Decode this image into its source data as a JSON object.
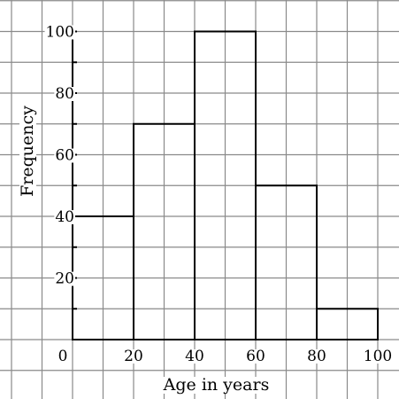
{
  "chart_data": {
    "type": "bar",
    "bins": [
      {
        "from": 0,
        "to": 20,
        "value": 40
      },
      {
        "from": 20,
        "to": 40,
        "value": 70
      },
      {
        "from": 40,
        "to": 60,
        "value": 100
      },
      {
        "from": 60,
        "to": 80,
        "value": 50
      },
      {
        "from": 80,
        "to": 100,
        "value": 10
      }
    ],
    "xlabel": "Age in years",
    "ylabel": "Frequency",
    "x_ticks": [
      "20",
      "40",
      "60",
      "80",
      "100"
    ],
    "y_ticks": [
      "20",
      "40",
      "60",
      "80",
      "100"
    ],
    "origin_label": "0",
    "xlim": [
      -20,
      120
    ],
    "ylim": [
      -20,
      110
    ],
    "grid": true
  }
}
